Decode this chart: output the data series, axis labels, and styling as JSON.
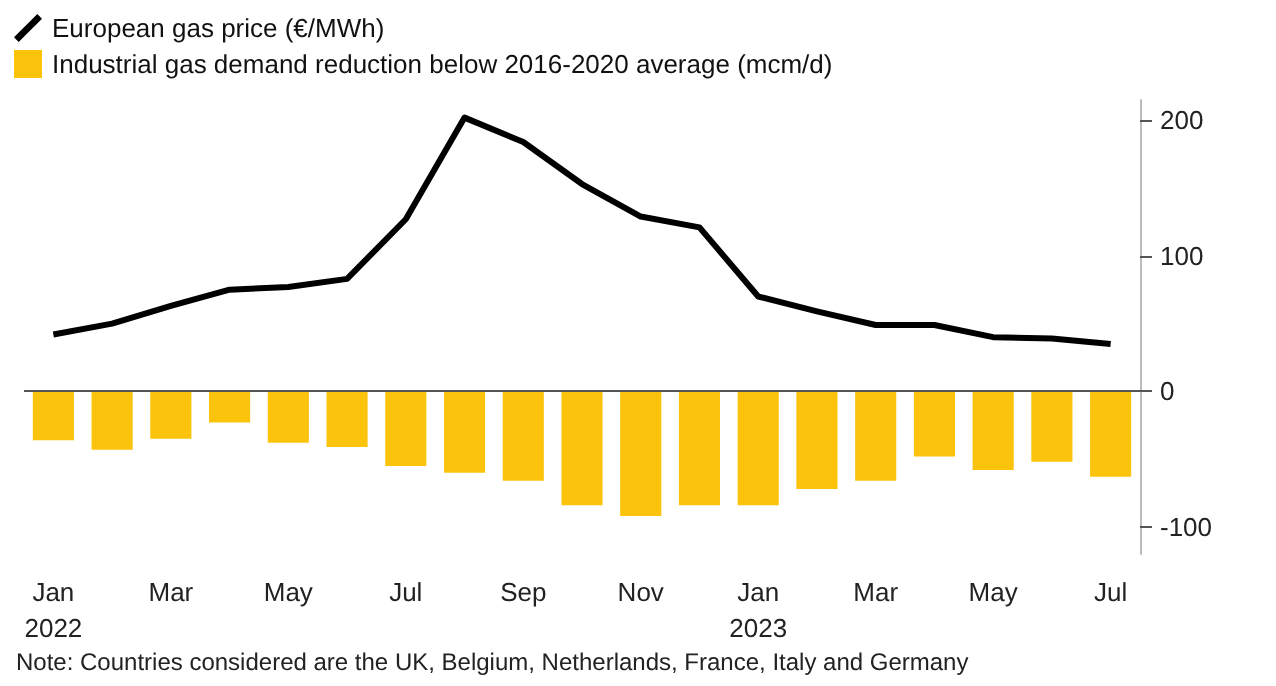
{
  "chart_data": {
    "type": "bar",
    "categories": [
      "Jan\n2022",
      null,
      "Mar",
      null,
      "May",
      null,
      "Jul",
      null,
      "Sep",
      null,
      "Nov",
      null,
      "Jan\n2023",
      null,
      "Mar",
      null,
      "May",
      null,
      "Jul"
    ],
    "series": [
      {
        "name": "European gas price (€/MWh)",
        "type": "line",
        "color": "#000000",
        "values": [
          42,
          50,
          63,
          75,
          77,
          83,
          127,
          202,
          184,
          153,
          129,
          121,
          70,
          59,
          49,
          49,
          40,
          39,
          35
        ]
      },
      {
        "name": "Industrial gas demand reduction below 2016-2020 average (mcm/d)",
        "color": "#fbc30b",
        "values": [
          -36,
          -43,
          -35,
          -23,
          -38,
          -41,
          -55,
          -60,
          -66,
          -84,
          -92,
          -84,
          -84,
          -72,
          -66,
          -48,
          -58,
          -52,
          -63
        ]
      }
    ],
    "ylim": [
      -120,
      215
    ],
    "yticks": [
      -100,
      0,
      100,
      200
    ],
    "ref_lines": [
      {
        "axis": "y",
        "value": 0,
        "color": "#555555"
      }
    ],
    "legend": "top left",
    "marker": "none",
    "line_style": "solid",
    "annotations": [
      "Note: Countries considered are the UK, Belgium, Netherlands, France, Italy and Germany"
    ]
  }
}
